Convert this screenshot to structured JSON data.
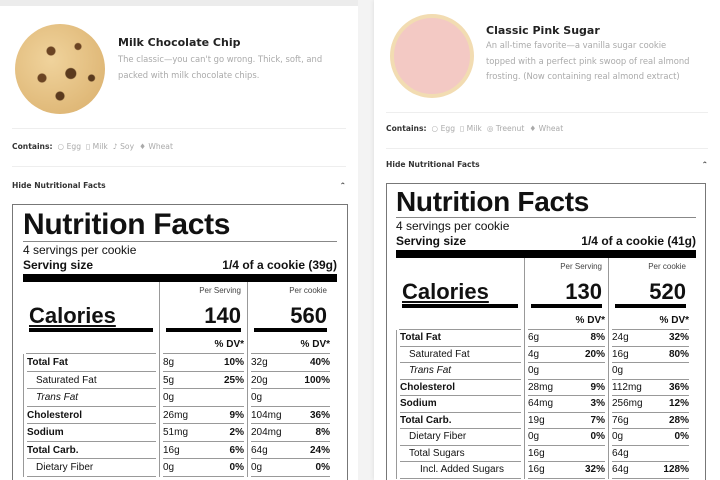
{
  "cards": [
    {
      "name": "Milk Chocolate Chip",
      "description": "The classic—you can't go wrong. Thick, soft, and packed with milk chocolate chips.",
      "image_icon": "chocolate-chip-cookie-image",
      "contains_label": "Contains:",
      "allergens": [
        "Egg",
        "Milk",
        "Soy",
        "Wheat"
      ],
      "toggle_label": "Hide Nutritional Facts",
      "nutrition": {
        "title": "Nutrition Facts",
        "servings": "4 servings per cookie",
        "serving_size_label": "Serving size",
        "serving_size": "1/4 of a cookie (39g)",
        "calories_label": "Calories",
        "per_serving_label": "Per Serving",
        "per_cookie_label": "Per cookie",
        "calories_serving": "140",
        "calories_cookie": "560",
        "dv_label": "% DV*",
        "rows": [
          {
            "label": "Total Fat",
            "style": "bold",
            "ps": "8g",
            "ps_dv": "10%",
            "pc": "32g",
            "pc_dv": "40%"
          },
          {
            "label": "Saturated Fat",
            "style": "sub",
            "ps": "5g",
            "ps_dv": "25%",
            "pc": "20g",
            "pc_dv": "100%"
          },
          {
            "label": "Trans Fat",
            "style": "sub it",
            "ps": "0g",
            "ps_dv": "",
            "pc": "0g",
            "pc_dv": ""
          },
          {
            "label": "Cholesterol",
            "style": "bold",
            "ps": "26mg",
            "ps_dv": "9%",
            "pc": "104mg",
            "pc_dv": "36%"
          },
          {
            "label": "Sodium",
            "style": "bold",
            "ps": "51mg",
            "ps_dv": "2%",
            "pc": "204mg",
            "pc_dv": "8%"
          },
          {
            "label": "Total Carb.",
            "style": "bold",
            "ps": "16g",
            "ps_dv": "6%",
            "pc": "64g",
            "pc_dv": "24%"
          },
          {
            "label": "Dietary Fiber",
            "style": "sub",
            "ps": "0g",
            "ps_dv": "0%",
            "pc": "0g",
            "pc_dv": "0%"
          }
        ]
      }
    },
    {
      "name": "Classic Pink Sugar",
      "description": "An all-time favorite—a vanilla sugar cookie topped with a perfect pink swoop of real almond frosting. (Now containing real almond extract)",
      "image_icon": "pink-sugar-cookie-image",
      "contains_label": "Contains:",
      "allergens": [
        "Egg",
        "Milk",
        "Treenut",
        "Wheat"
      ],
      "toggle_label": "Hide Nutritional Facts",
      "nutrition": {
        "title": "Nutrition Facts",
        "servings": "4 servings per cookie",
        "serving_size_label": "Serving size",
        "serving_size": "1/4 of a cookie (41g)",
        "calories_label": "Calories",
        "per_serving_label": "Per Serving",
        "per_cookie_label": "Per cookie",
        "calories_serving": "130",
        "calories_cookie": "520",
        "dv_label": "% DV*",
        "rows": [
          {
            "label": "Total Fat",
            "style": "bold",
            "ps": "6g",
            "ps_dv": "8%",
            "pc": "24g",
            "pc_dv": "32%"
          },
          {
            "label": "Saturated Fat",
            "style": "sub",
            "ps": "4g",
            "ps_dv": "20%",
            "pc": "16g",
            "pc_dv": "80%"
          },
          {
            "label": "Trans Fat",
            "style": "sub it",
            "ps": "0g",
            "ps_dv": "",
            "pc": "0g",
            "pc_dv": ""
          },
          {
            "label": "Cholesterol",
            "style": "bold",
            "ps": "28mg",
            "ps_dv": "9%",
            "pc": "112mg",
            "pc_dv": "36%"
          },
          {
            "label": "Sodium",
            "style": "bold",
            "ps": "64mg",
            "ps_dv": "3%",
            "pc": "256mg",
            "pc_dv": "12%"
          },
          {
            "label": "Total Carb.",
            "style": "bold",
            "ps": "19g",
            "ps_dv": "7%",
            "pc": "76g",
            "pc_dv": "28%"
          },
          {
            "label": "Dietary Fiber",
            "style": "sub",
            "ps": "0g",
            "ps_dv": "0%",
            "pc": "0g",
            "pc_dv": "0%"
          },
          {
            "label": "Total Sugars",
            "style": "sub",
            "ps": "16g",
            "ps_dv": "",
            "pc": "64g",
            "pc_dv": ""
          },
          {
            "label": "Incl. Added Sugars",
            "style": "sub sub2",
            "ps": "16g",
            "ps_dv": "32%",
            "pc": "64g",
            "pc_dv": "128%"
          }
        ]
      }
    }
  ]
}
